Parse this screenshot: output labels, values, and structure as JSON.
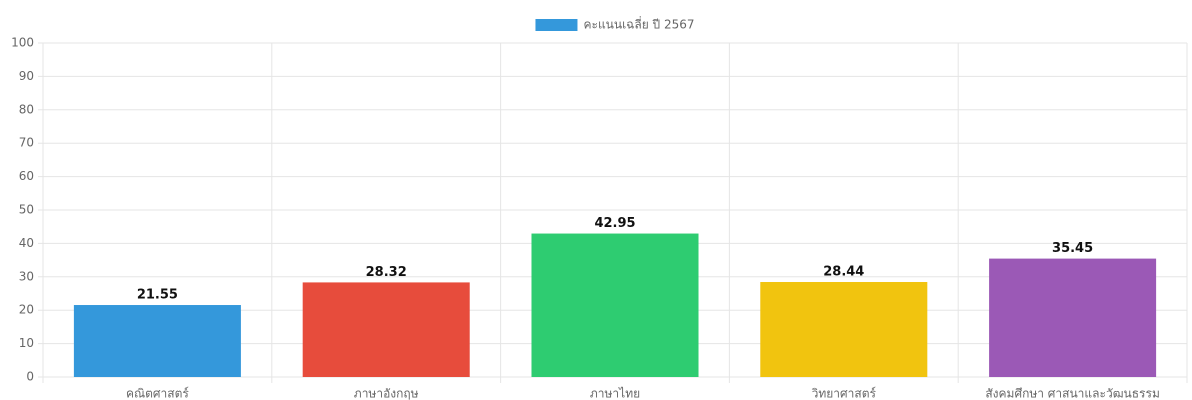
{
  "chart_data": {
    "type": "bar",
    "categories": [
      "คณิตศาสตร์",
      "ภาษาอังกฤษ",
      "ภาษาไทย",
      "วิทยาศาสตร์",
      "สังคมศึกษา ศาสนาและวัฒนธรรม"
    ],
    "series": [
      {
        "name": "คะแนนเฉลี่ย ปี 2567",
        "color": [
          "#3498db",
          "#e74c3c",
          "#2ecc71",
          "#f1c40f",
          "#9b59b6"
        ],
        "values": [
          21.55,
          28.32,
          42.95,
          28.44,
          35.45
        ]
      }
    ],
    "ylim": [
      0,
      100
    ],
    "yticks": [
      0,
      10,
      20,
      30,
      40,
      50,
      60,
      70,
      80,
      90,
      100
    ],
    "grid": true,
    "legend": "top",
    "data_labels": true
  }
}
